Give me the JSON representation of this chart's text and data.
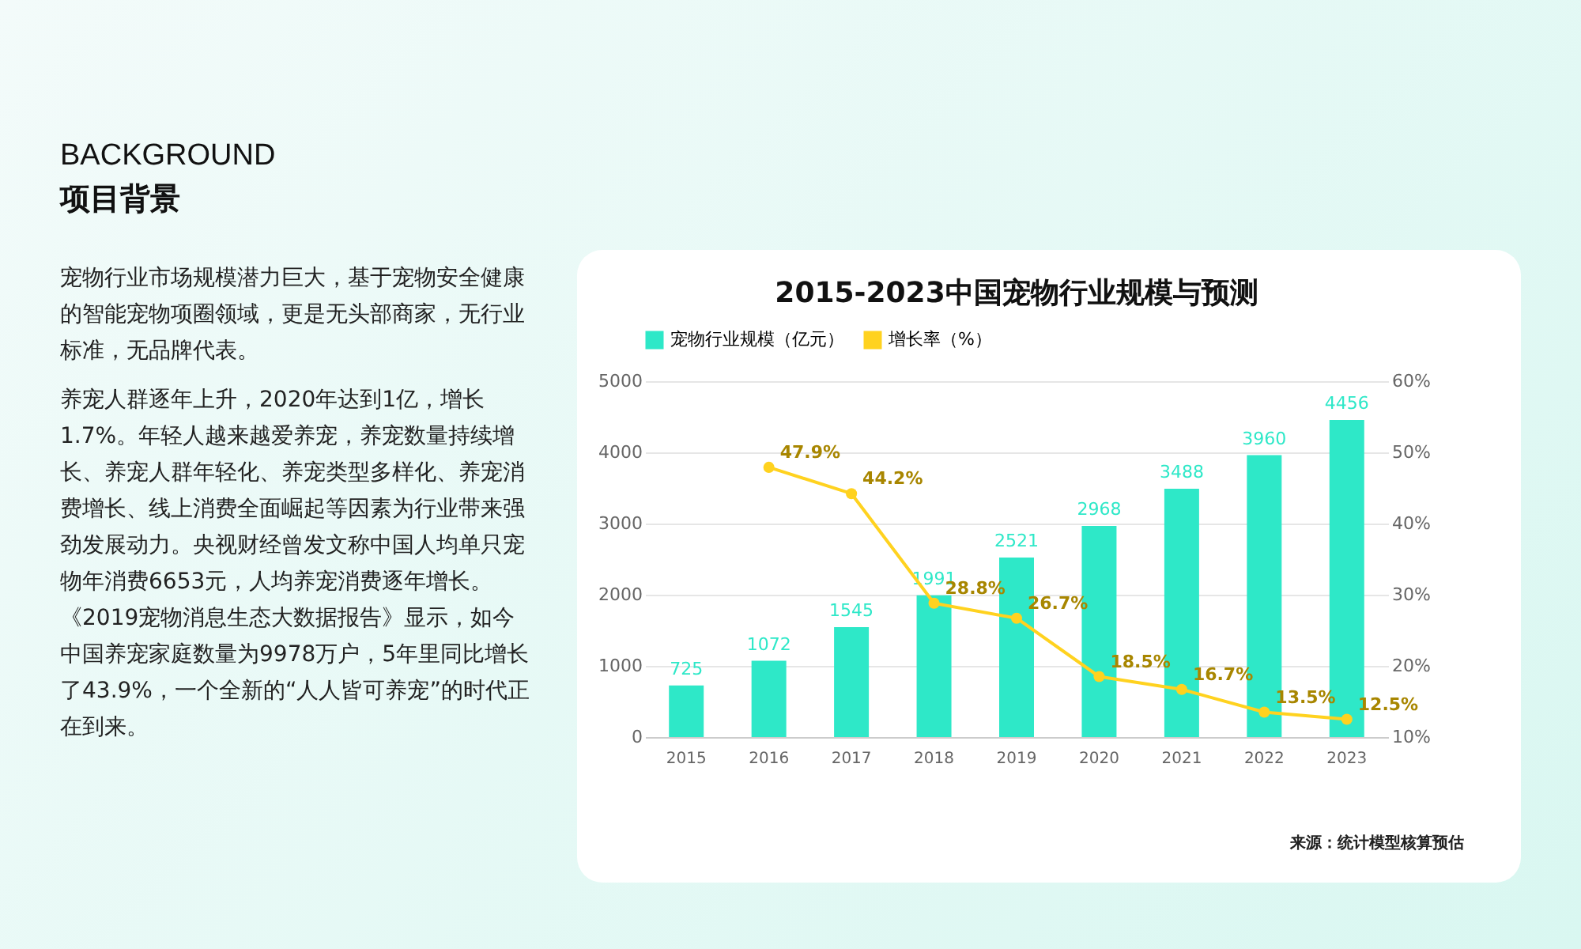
{
  "chart_data": {
    "type": "bar",
    "title": "2015-2023中国宠物行业规模与预测",
    "categories": [
      "2015",
      "2016",
      "2017",
      "2018",
      "2019",
      "2020",
      "2021",
      "2022",
      "2023"
    ],
    "series": [
      {
        "name": "宠物行业规模（亿元）",
        "color": "#2ee8c8",
        "values": [
          725,
          1072,
          1545,
          1991,
          2521,
          2968,
          3488,
          3960,
          4456
        ],
        "value_labels": [
          "725",
          "1072",
          "1545",
          "1991",
          "2521",
          "2968",
          "3488",
          "3960",
          "4456"
        ]
      },
      {
        "name": "增长率（%）",
        "type": "line",
        "axis": "y2",
        "color": "#ffd21f",
        "values": [
          null,
          47.9,
          44.2,
          28.8,
          26.7,
          18.5,
          16.7,
          13.5,
          12.5
        ],
        "value_labels": [
          null,
          "47.9%",
          "44.2%",
          "28.8%",
          "26.7%",
          "18.5%",
          "16.7%",
          "13.5%",
          "12.5%"
        ]
      }
    ],
    "ylim": [
      0,
      5000
    ],
    "yticks": [
      0,
      1000,
      2000,
      3000,
      4000,
      5000
    ],
    "y2lim": [
      10,
      60
    ],
    "y2ticks": [
      {
        "value": 10,
        "label": "10%"
      },
      {
        "value": 20,
        "label": "20%"
      },
      {
        "value": 30,
        "label": "30%"
      },
      {
        "value": 40,
        "label": "40%"
      },
      {
        "value": 50,
        "label": "50%"
      },
      {
        "value": 60,
        "label": "60%"
      }
    ],
    "grid": "y",
    "legend": "top",
    "marker": "circle",
    "annotations": [
      "BACKGROUND",
      "项目背景",
      "宠物行业市场规模潜力巨大，基于宠物安全健康的智能宠物项圈领域，更是无头部商家，无行业标准，无品牌代表。",
      "养宠人群逐年上升，2020年达到1亿，增长1.7%。年轻人越来越爱养宠，养宠数量持续增长、养宠人群年轻化、养宠类型多样化、养宠消费增长、线上消费全面崛起等因素为行业带来强劲发展动力。央视财经曾发文称中国人均单只宠物年消费6653元，人均养宠消费逐年增长。《2019宠物消息生态大数据报告》显示，如今中国养宠家庭数量为9978万户，5年里同比增长了43.9%，一个全新的“人人皆可养宠”的时代正在到来。",
      "来源：统计模型核算预估"
    ]
  }
}
